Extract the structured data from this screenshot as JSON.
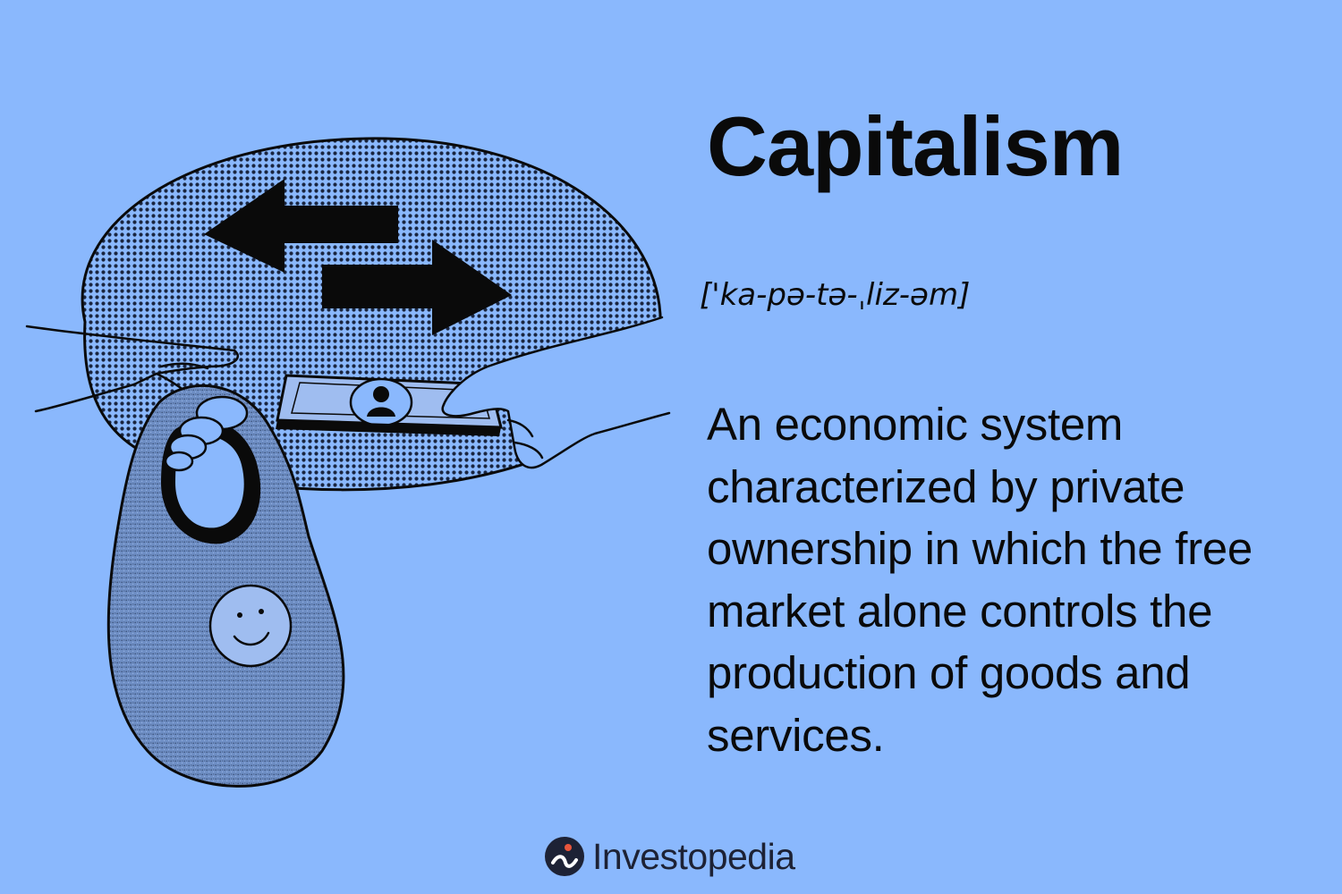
{
  "title": "Capitalism",
  "pronunciation": "['ka-pə-tə-ˌliz-əm]",
  "definition": "An economic system characterized by private ownership in which the free market alone controls the production of goods and services.",
  "brand": {
    "name": "Investopedia",
    "logo_icon": "investopedia-logo-icon"
  },
  "colors": {
    "background": "#8ab8fd",
    "ink": "#0a0a0a",
    "illustration_fill": "#6f8fc4",
    "brand_ink": "#1d2235"
  }
}
